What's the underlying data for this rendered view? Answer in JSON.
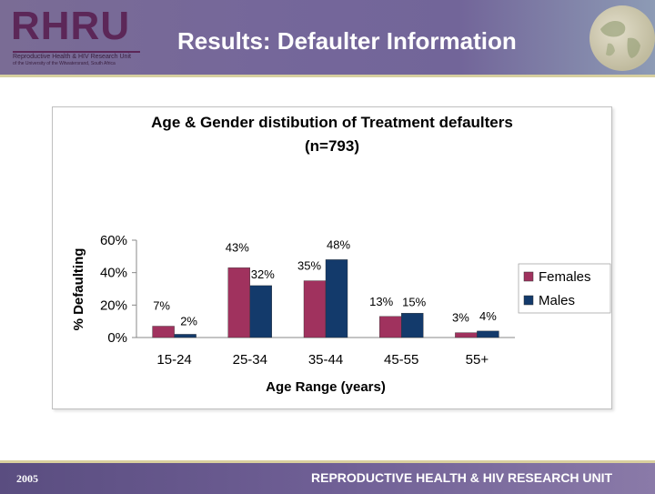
{
  "header": {
    "logo_text": "RHRU",
    "logo_subtitle_1": "Reproductive Health & HIV Research Unit",
    "logo_subtitle_2": "of the University of the Witwatersrand, South Africa",
    "title": "Results: Defaulter Information"
  },
  "footer": {
    "year": "2005",
    "unit_name": "REPRODUCTIVE HEALTH & HIV RESEARCH UNIT"
  },
  "colors": {
    "females": "#a0325e",
    "males": "#133a6b",
    "header_bg": "#7a6c95",
    "logo": "#5c2758"
  },
  "chart_data": {
    "type": "bar",
    "title": "Age & Gender distibution of Treatment defaulters",
    "subtitle": "(n=793)",
    "xlabel": "Age Range (years)",
    "ylabel": "% Defaulting",
    "categories": [
      "15-24",
      "25-34",
      "35-44",
      "45-55",
      "55+"
    ],
    "series": [
      {
        "name": "Females",
        "values": [
          7,
          43,
          35,
          13,
          3
        ],
        "labels": [
          "7%",
          "43%",
          "35%",
          "13%",
          "3%"
        ]
      },
      {
        "name": "Males",
        "values": [
          2,
          32,
          48,
          15,
          4
        ],
        "labels": [
          "2%",
          "32%",
          "48%",
          "15%",
          "4%"
        ]
      }
    ],
    "yticks": [
      "0%",
      "20%",
      "40%",
      "60%"
    ],
    "ytick_values": [
      0,
      20,
      40,
      60
    ],
    "ylim": [
      0,
      60
    ],
    "legend_position": "right",
    "grid": false
  }
}
